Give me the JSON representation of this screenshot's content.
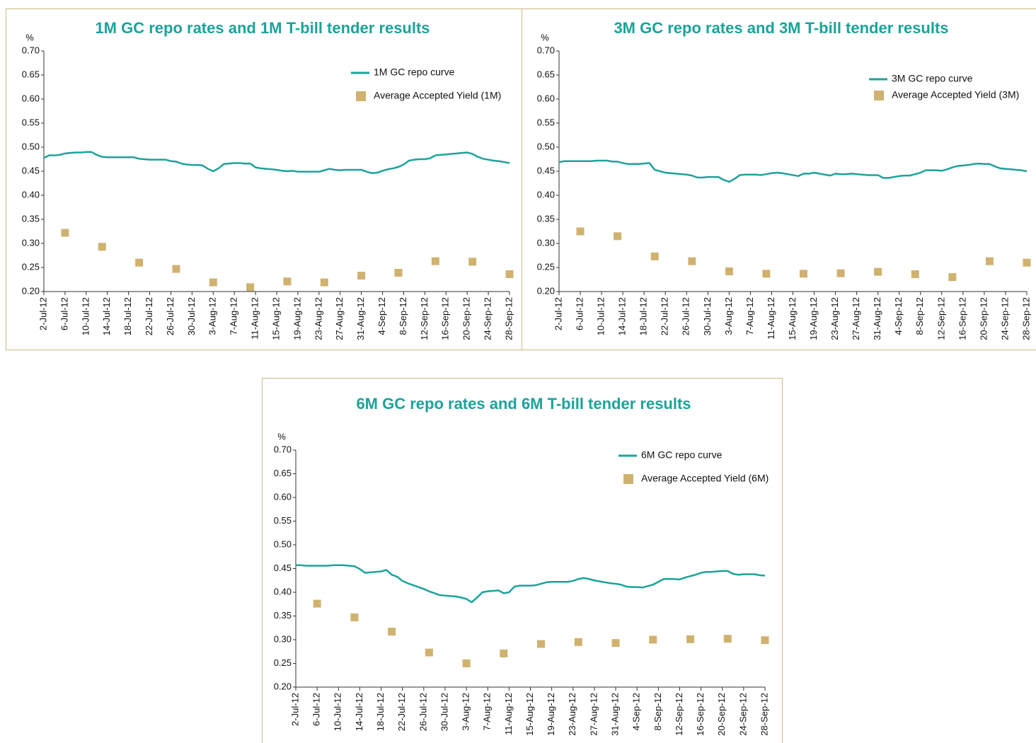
{
  "chart_data": [
    {
      "type": "line",
      "title": "1M GC repo rates and 1M T-bill tender results",
      "y_unit": "%",
      "categories": [
        "2-Jul-12",
        null,
        null,
        null,
        "6-Jul-12",
        null,
        null,
        null,
        "10-Jul-12",
        null,
        null,
        null,
        "14-Jul-12",
        null,
        null,
        null,
        "18-Jul-12",
        null,
        null,
        null,
        "22-Jul-12",
        null,
        null,
        null,
        "26-Jul-12",
        null,
        null,
        null,
        "30-Jul-12",
        null,
        null,
        null,
        "3-Aug-12",
        null,
        null,
        null,
        "7-Aug-12",
        null,
        null,
        null,
        "11-Aug-12",
        null,
        null,
        null,
        "15-Aug-12",
        null,
        null,
        null,
        "19-Aug-12",
        null,
        null,
        null,
        "23-Aug-12",
        null,
        null,
        null,
        "27-Aug-12",
        null,
        null,
        null,
        "31-Aug-12",
        null,
        null,
        null,
        "4-Sep-12",
        null,
        null,
        null,
        "8-Sep-12",
        null,
        null,
        null,
        "12-Sep-12",
        null,
        null,
        null,
        "16-Sep-12",
        null,
        null,
        null,
        "20-Sep-12",
        null,
        null,
        null,
        "24-Sep-12",
        null,
        null,
        null,
        "28-Sep-12"
      ],
      "ylim": [
        0.2,
        0.7
      ],
      "yticks": [
        {
          "value": 0.2,
          "label": "0.20"
        },
        {
          "value": 0.25,
          "label": "0.25"
        },
        {
          "value": 0.3,
          "label": "0.30"
        },
        {
          "value": 0.35,
          "label": "0.35"
        },
        {
          "value": 0.4,
          "label": "0.40"
        },
        {
          "value": 0.45,
          "label": "0.45"
        },
        {
          "value": 0.5,
          "label": "0.50"
        },
        {
          "value": 0.55,
          "label": "0.55"
        },
        {
          "value": 0.6,
          "label": "0.60"
        },
        {
          "value": 0.65,
          "label": "0.65"
        },
        {
          "value": 0.7,
          "label": "0.70"
        }
      ],
      "series": [
        {
          "name": "1M GC repo curve",
          "type": "line",
          "color": "#1ba39a",
          "values": [
            0.478,
            0.483,
            0.483,
            0.484,
            0.487,
            0.488,
            0.489,
            0.489,
            0.49,
            0.49,
            0.484,
            0.48,
            0.479,
            0.479,
            0.479,
            0.479,
            0.479,
            0.479,
            0.476,
            0.475,
            0.474,
            0.474,
            0.474,
            0.474,
            0.471,
            0.47,
            0.466,
            0.464,
            0.463,
            0.463,
            0.462,
            0.455,
            0.45,
            0.456,
            0.465,
            0.466,
            0.467,
            0.467,
            0.466,
            0.466,
            0.458,
            0.456,
            0.455,
            0.454,
            0.453,
            0.451,
            0.45,
            0.451,
            0.449,
            0.449,
            0.449,
            0.449,
            0.449,
            0.452,
            0.455,
            0.453,
            0.452,
            0.453,
            0.453,
            0.453,
            0.453,
            0.449,
            0.446,
            0.447,
            0.451,
            0.454,
            0.456,
            0.459,
            0.464,
            0.472,
            0.474,
            0.475,
            0.475,
            0.477,
            0.483,
            0.484,
            0.485,
            0.486,
            0.487,
            0.488,
            0.489,
            0.486,
            0.48,
            0.476,
            0.474,
            0.472,
            0.471,
            0.469,
            0.467
          ]
        },
        {
          "name": "Average Accepted Yield (1M)",
          "type": "scatter",
          "color": "#cfb26f",
          "values": [
            null,
            null,
            null,
            null,
            0.322,
            null,
            null,
            null,
            null,
            null,
            null,
            0.293,
            null,
            null,
            null,
            null,
            null,
            null,
            0.26,
            null,
            null,
            null,
            null,
            null,
            null,
            0.247,
            null,
            null,
            null,
            null,
            null,
            null,
            0.219,
            null,
            null,
            null,
            null,
            null,
            null,
            0.209,
            null,
            null,
            null,
            null,
            null,
            null,
            0.221,
            null,
            null,
            null,
            null,
            null,
            null,
            0.219,
            null,
            null,
            null,
            null,
            null,
            null,
            0.233,
            null,
            null,
            null,
            null,
            null,
            null,
            0.239,
            null,
            null,
            null,
            null,
            null,
            null,
            0.263,
            null,
            null,
            null,
            null,
            null,
            null,
            0.262,
            null,
            null,
            null,
            null,
            null,
            null,
            0.236
          ]
        }
      ]
    },
    {
      "type": "line",
      "title": "3M GC repo rates and 3M T-bill tender results",
      "y_unit": "%",
      "categories": [
        "2-Jul-12",
        null,
        null,
        null,
        "6-Jul-12",
        null,
        null,
        null,
        "10-Jul-12",
        null,
        null,
        null,
        "14-Jul-12",
        null,
        null,
        null,
        "18-Jul-12",
        null,
        null,
        null,
        "22-Jul-12",
        null,
        null,
        null,
        "26-Jul-12",
        null,
        null,
        null,
        "30-Jul-12",
        null,
        null,
        null,
        "3-Aug-12",
        null,
        null,
        null,
        "7-Aug-12",
        null,
        null,
        null,
        "11-Aug-12",
        null,
        null,
        null,
        "15-Aug-12",
        null,
        null,
        null,
        "19-Aug-12",
        null,
        null,
        null,
        "23-Aug-12",
        null,
        null,
        null,
        "27-Aug-12",
        null,
        null,
        null,
        "31-Aug-12",
        null,
        null,
        null,
        "4-Sep-12",
        null,
        null,
        null,
        "8-Sep-12",
        null,
        null,
        null,
        "12-Sep-12",
        null,
        null,
        null,
        "16-Sep-12",
        null,
        null,
        null,
        "20-Sep-12",
        null,
        null,
        null,
        "24-Sep-12",
        null,
        null,
        null,
        "28-Sep-12"
      ],
      "ylim": [
        0.2,
        0.7
      ],
      "yticks": [
        {
          "value": 0.2,
          "label": "0.20"
        },
        {
          "value": 0.25,
          "label": "0.25"
        },
        {
          "value": 0.3,
          "label": "0.30"
        },
        {
          "value": 0.35,
          "label": "0.35"
        },
        {
          "value": 0.4,
          "label": "0.40"
        },
        {
          "value": 0.45,
          "label": "0.45"
        },
        {
          "value": 0.5,
          "label": "0.50"
        },
        {
          "value": 0.55,
          "label": "0.55"
        },
        {
          "value": 0.6,
          "label": "0.60"
        },
        {
          "value": 0.65,
          "label": "0.65"
        },
        {
          "value": 0.7,
          "label": "0.70"
        }
      ],
      "series": [
        {
          "name": "3M GC repo curve",
          "type": "line",
          "color": "#1ba39a",
          "values": [
            0.469,
            0.471,
            0.471,
            0.471,
            0.471,
            0.471,
            0.471,
            0.472,
            0.472,
            0.472,
            0.47,
            0.47,
            0.467,
            0.465,
            0.465,
            0.465,
            0.466,
            0.467,
            0.453,
            0.45,
            0.447,
            0.446,
            0.445,
            0.444,
            0.443,
            0.441,
            0.437,
            0.437,
            0.438,
            0.438,
            0.438,
            0.432,
            0.428,
            0.434,
            0.442,
            0.443,
            0.443,
            0.443,
            0.442,
            0.444,
            0.446,
            0.447,
            0.446,
            0.444,
            0.442,
            0.44,
            0.445,
            0.445,
            0.447,
            0.445,
            0.443,
            0.441,
            0.445,
            0.444,
            0.444,
            0.445,
            0.444,
            0.443,
            0.442,
            0.442,
            0.442,
            0.436,
            0.436,
            0.438,
            0.44,
            0.441,
            0.441,
            0.444,
            0.447,
            0.452,
            0.452,
            0.452,
            0.451,
            0.454,
            0.458,
            0.461,
            0.462,
            0.463,
            0.465,
            0.466,
            0.465,
            0.465,
            0.46,
            0.456,
            0.455,
            0.454,
            0.453,
            0.452,
            0.45
          ]
        },
        {
          "name": "Average Accepted Yield (3M)",
          "type": "scatter",
          "color": "#cfb26f",
          "values": [
            null,
            null,
            null,
            null,
            0.325,
            null,
            null,
            null,
            null,
            null,
            null,
            0.315,
            null,
            null,
            null,
            null,
            null,
            null,
            0.273,
            null,
            null,
            null,
            null,
            null,
            null,
            0.263,
            null,
            null,
            null,
            null,
            null,
            null,
            0.242,
            null,
            null,
            null,
            null,
            null,
            null,
            0.237,
            null,
            null,
            null,
            null,
            null,
            null,
            0.237,
            null,
            null,
            null,
            null,
            null,
            null,
            0.238,
            null,
            null,
            null,
            null,
            null,
            null,
            0.241,
            null,
            null,
            null,
            null,
            null,
            null,
            0.236,
            null,
            null,
            null,
            null,
            null,
            null,
            0.23,
            null,
            null,
            null,
            null,
            null,
            null,
            0.263,
            null,
            null,
            null,
            null,
            null,
            null,
            0.26
          ]
        }
      ]
    },
    {
      "type": "line",
      "title": "6M GC repo rates and 6M T-bill tender results",
      "y_unit": "%",
      "categories": [
        "2-Jul-12",
        null,
        null,
        null,
        "6-Jul-12",
        null,
        null,
        null,
        "10-Jul-12",
        null,
        null,
        null,
        "14-Jul-12",
        null,
        null,
        null,
        "18-Jul-12",
        null,
        null,
        null,
        "22-Jul-12",
        null,
        null,
        null,
        "26-Jul-12",
        null,
        null,
        null,
        "30-Jul-12",
        null,
        null,
        null,
        "3-Aug-12",
        null,
        null,
        null,
        "7-Aug-12",
        null,
        null,
        null,
        "11-Aug-12",
        null,
        null,
        null,
        "15-Aug-12",
        null,
        null,
        null,
        "19-Aug-12",
        null,
        null,
        null,
        "23-Aug-12",
        null,
        null,
        null,
        "27-Aug-12",
        null,
        null,
        null,
        "31-Aug-12",
        null,
        null,
        null,
        "4-Sep-12",
        null,
        null,
        null,
        "8-Sep-12",
        null,
        null,
        null,
        "12-Sep-12",
        null,
        null,
        null,
        "16-Sep-12",
        null,
        null,
        null,
        "20-Sep-12",
        null,
        null,
        null,
        "24-Sep-12",
        null,
        null,
        null,
        "28-Sep-12"
      ],
      "ylim": [
        0.2,
        0.7
      ],
      "yticks": [
        {
          "value": 0.2,
          "label": "0.20"
        },
        {
          "value": 0.25,
          "label": "0.25"
        },
        {
          "value": 0.3,
          "label": "0.30"
        },
        {
          "value": 0.35,
          "label": "0.35"
        },
        {
          "value": 0.4,
          "label": "0.40"
        },
        {
          "value": 0.45,
          "label": "0.45"
        },
        {
          "value": 0.5,
          "label": "0.50"
        },
        {
          "value": 0.55,
          "label": "0.55"
        },
        {
          "value": 0.6,
          "label": "0.60"
        },
        {
          "value": 0.65,
          "label": "0.65"
        },
        {
          "value": 0.7,
          "label": "0.70"
        }
      ],
      "series": [
        {
          "name": "6M GC repo curve",
          "type": "line",
          "color": "#1ba39a",
          "values": [
            0.457,
            0.457,
            0.456,
            0.456,
            0.456,
            0.456,
            0.456,
            0.457,
            0.457,
            0.457,
            0.456,
            0.455,
            0.449,
            0.441,
            0.442,
            0.443,
            0.444,
            0.447,
            0.437,
            0.433,
            0.424,
            0.419,
            0.415,
            0.411,
            0.407,
            0.402,
            0.398,
            0.394,
            0.393,
            0.392,
            0.391,
            0.389,
            0.386,
            0.379,
            0.389,
            0.4,
            0.402,
            0.403,
            0.404,
            0.398,
            0.4,
            0.412,
            0.414,
            0.414,
            0.414,
            0.415,
            0.418,
            0.421,
            0.422,
            0.422,
            0.422,
            0.422,
            0.424,
            0.428,
            0.43,
            0.428,
            0.425,
            0.423,
            0.421,
            0.419,
            0.418,
            0.416,
            0.412,
            0.411,
            0.411,
            0.41,
            0.413,
            0.416,
            0.422,
            0.428,
            0.428,
            0.428,
            0.427,
            0.431,
            0.434,
            0.437,
            0.441,
            0.443,
            0.443,
            0.444,
            0.445,
            0.445,
            0.439,
            0.437,
            0.438,
            0.438,
            0.438,
            0.436,
            0.435
          ]
        },
        {
          "name": "Average Accepted Yield (6M)",
          "type": "scatter",
          "color": "#cfb26f",
          "values": [
            null,
            null,
            null,
            null,
            0.376,
            null,
            null,
            null,
            null,
            null,
            null,
            0.347,
            null,
            null,
            null,
            null,
            null,
            null,
            0.317,
            null,
            null,
            null,
            null,
            null,
            null,
            0.273,
            null,
            null,
            null,
            null,
            null,
            null,
            0.25,
            null,
            null,
            null,
            null,
            null,
            null,
            0.271,
            null,
            null,
            null,
            null,
            null,
            null,
            0.291,
            null,
            null,
            null,
            null,
            null,
            null,
            0.295,
            null,
            null,
            null,
            null,
            null,
            null,
            0.293,
            null,
            null,
            null,
            null,
            null,
            null,
            0.3,
            null,
            null,
            null,
            null,
            null,
            null,
            0.301,
            null,
            null,
            null,
            null,
            null,
            null,
            0.302,
            null,
            null,
            null,
            null,
            null,
            null,
            0.299
          ]
        }
      ]
    }
  ]
}
